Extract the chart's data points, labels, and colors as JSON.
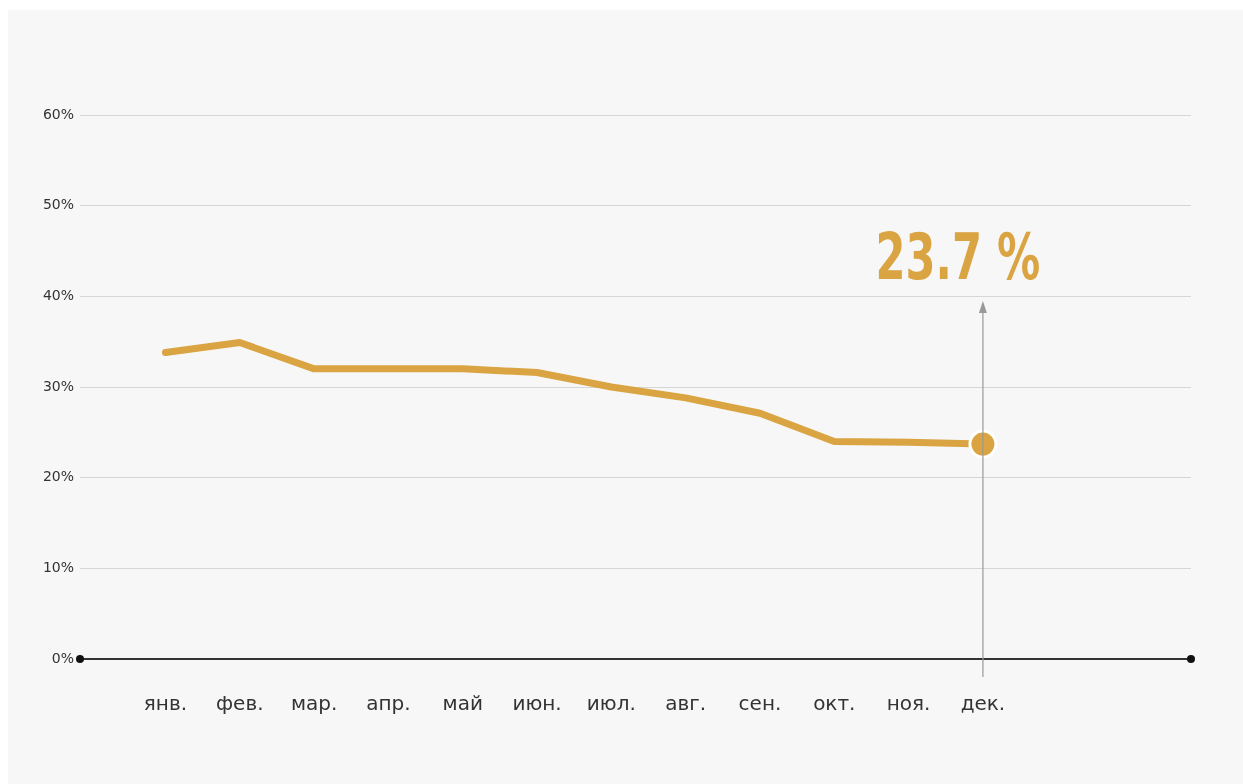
{
  "chart_data": {
    "type": "line",
    "categories": [
      "янв.",
      "фев.",
      "мар.",
      "апр.",
      "май",
      "июн.",
      "июл.",
      "авг.",
      "сен.",
      "окт.",
      "ноя.",
      "дек."
    ],
    "series": [
      {
        "color": "#d9a441",
        "values": [
          33.8,
          34.9,
          32.0,
          32.0,
          32.0,
          31.6,
          30.0,
          28.8,
          27.1,
          24.0,
          23.9,
          23.7
        ]
      }
    ],
    "ylim": [
      0,
      60
    ],
    "yticks": [
      {
        "value": 0,
        "label": "0%"
      },
      {
        "value": 10,
        "label": "10%"
      },
      {
        "value": 20,
        "label": "20%"
      },
      {
        "value": 30,
        "label": "30%"
      },
      {
        "value": 40,
        "label": "40%"
      },
      {
        "value": 50,
        "label": "50%"
      },
      {
        "value": 60,
        "label": "60%"
      }
    ],
    "grid": "y",
    "legend": false,
    "marker": "none",
    "line_style": "solid",
    "annotations": [
      {
        "text": "23.7 %",
        "x": "дек.",
        "y": 23.7
      }
    ]
  }
}
